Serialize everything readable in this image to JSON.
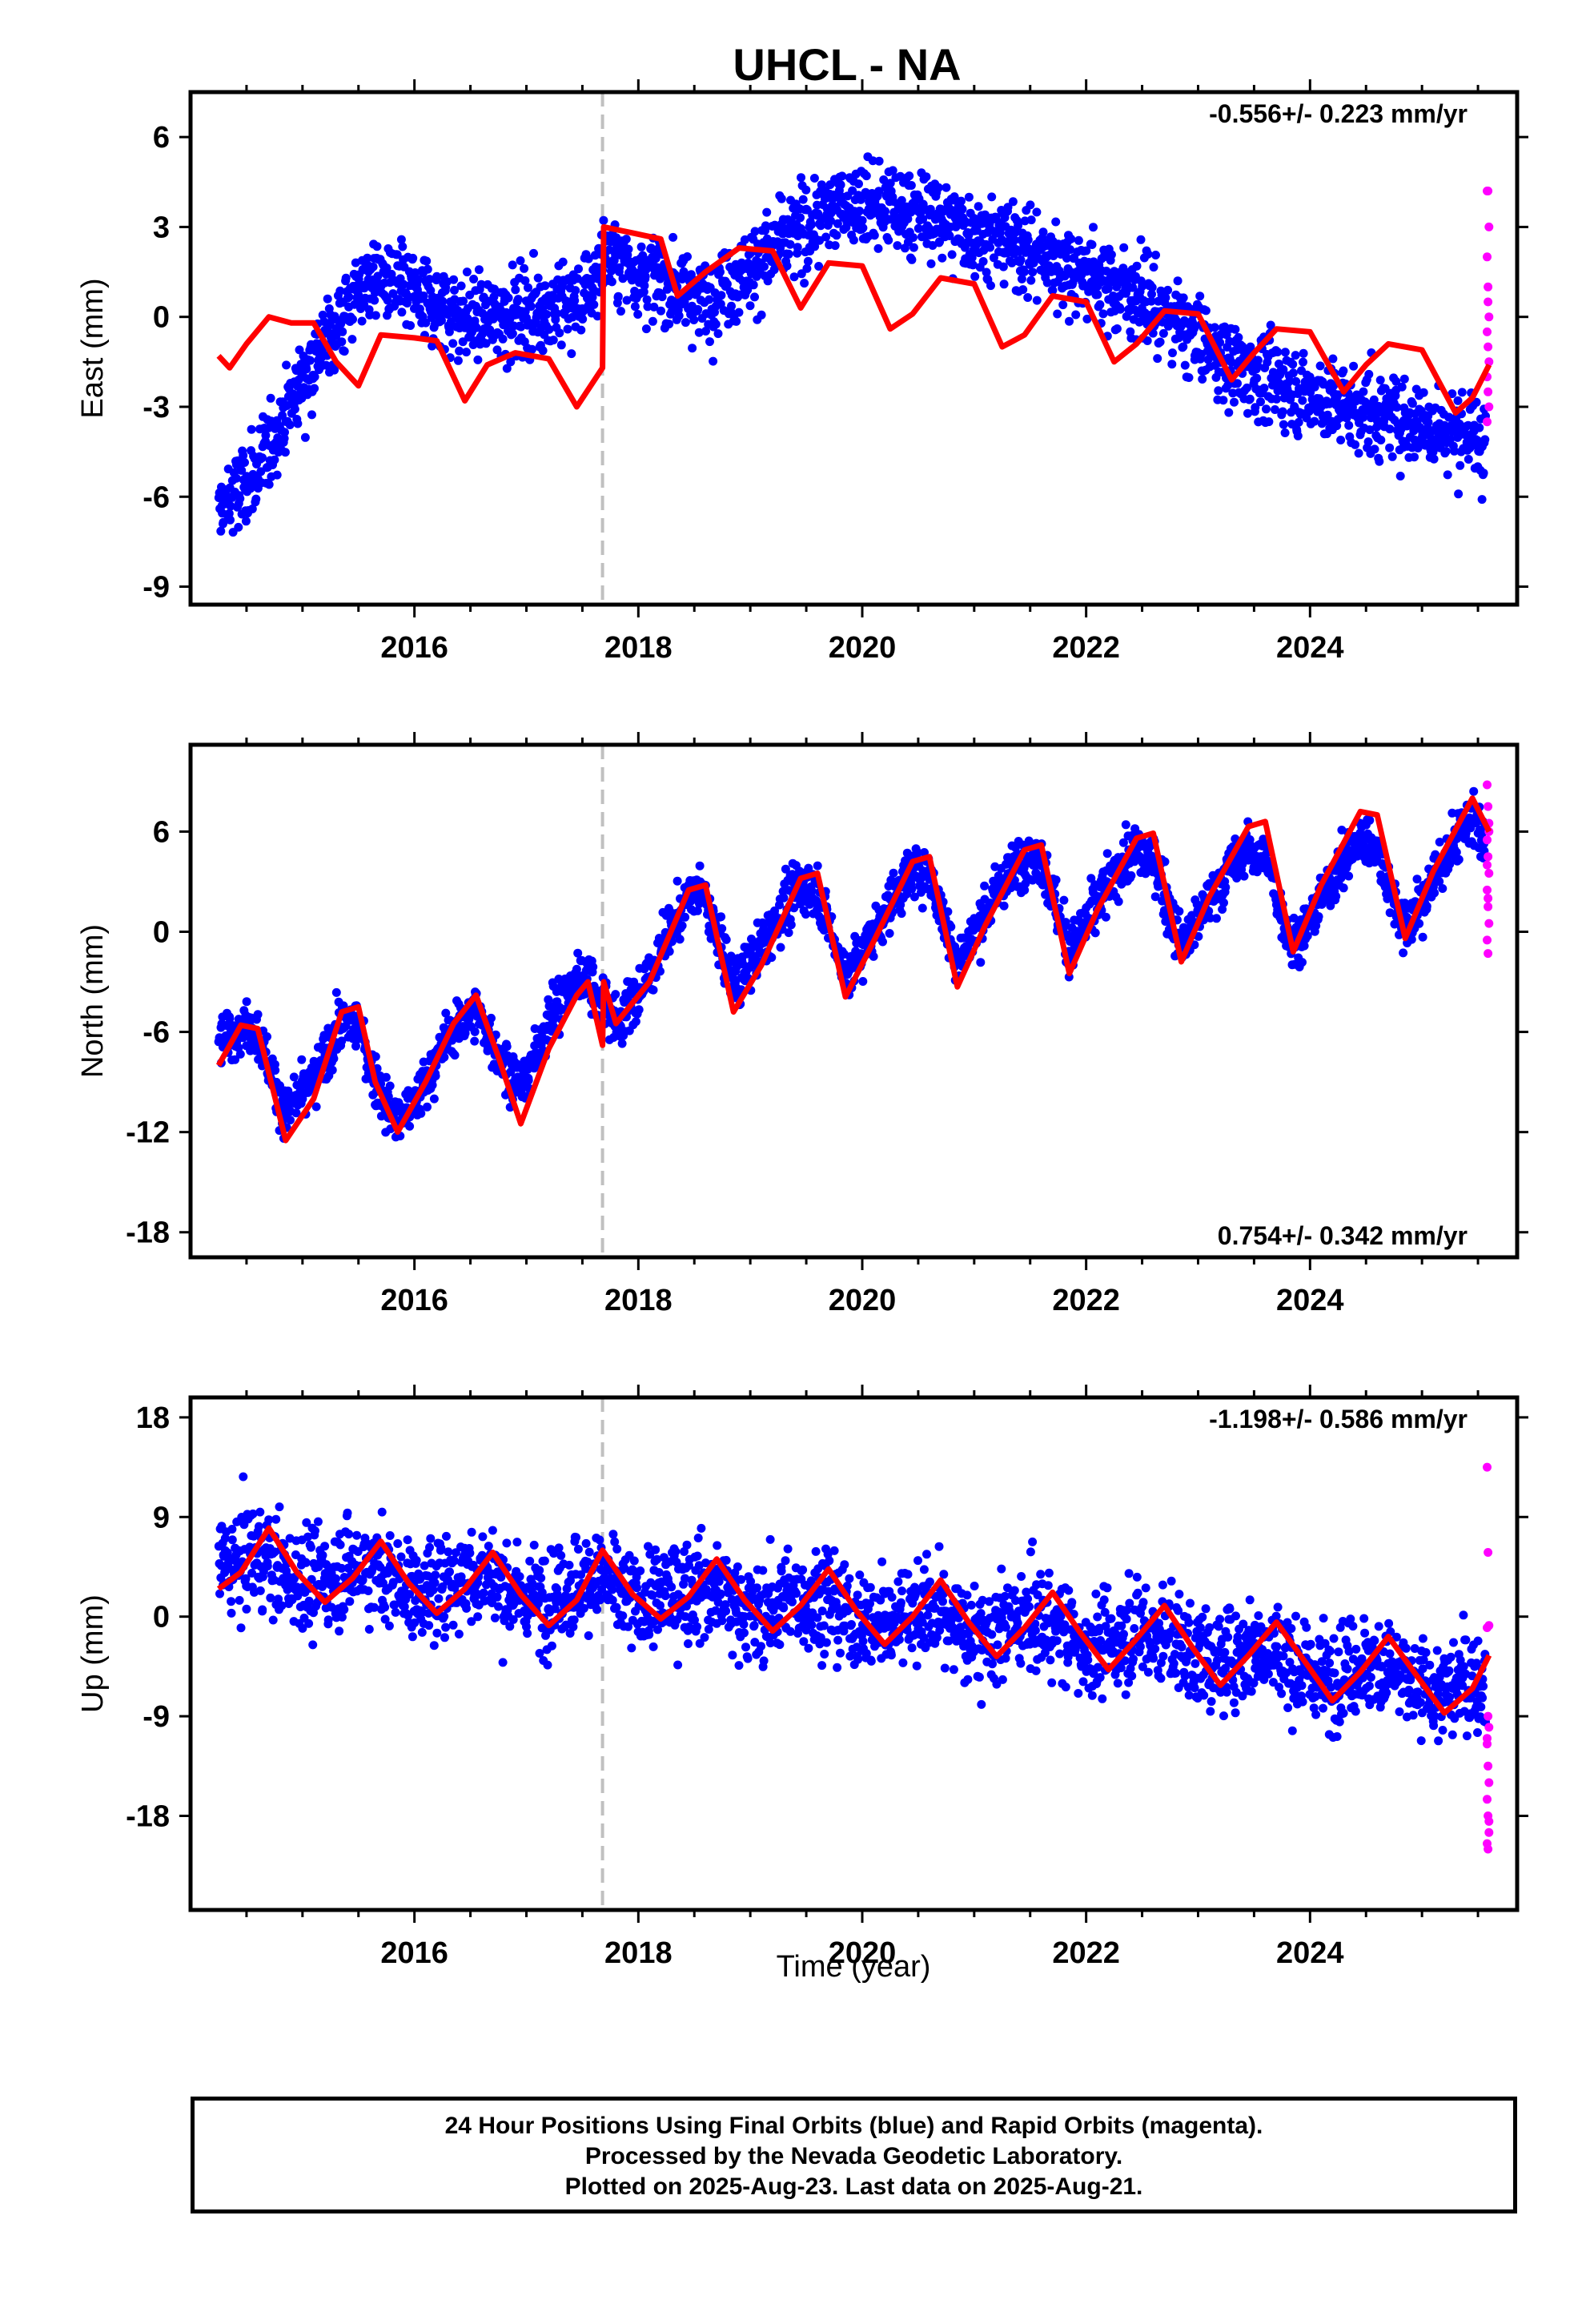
{
  "title": "UHCL - NA",
  "xlabel": "Time (year)",
  "footer": {
    "line1": "24 Hour Positions Using Final Orbits (blue) and Rapid Orbits (magenta).",
    "line2": "Processed by the Nevada Geodetic Laboratory.",
    "line3": "Plotted on 2025-Aug-23. Last data on 2025-Aug-21."
  },
  "colors": {
    "final": "#0000ff",
    "rapid": "#ff00ff",
    "model": "#ff0000",
    "offset": "#c0c0c0"
  },
  "chart_data": [
    {
      "type": "scatter",
      "component": "East",
      "ylabel": "East (mm)",
      "rate": "-0.556+/- 0.223 mm/yr",
      "rate_position": "top-right",
      "xlim": [
        2014.0,
        2025.85
      ],
      "ylim": [
        -9.6,
        7.5
      ],
      "yticks": [
        "6",
        "3",
        "0",
        "-3",
        "-6",
        "-9"
      ],
      "ytick_values": [
        6,
        3,
        0,
        -3,
        -6,
        -9
      ],
      "xticks": [
        "2016",
        "2018",
        "2020",
        "2022",
        "2024"
      ],
      "xtick_values": [
        2016,
        2018,
        2020,
        2022,
        2024
      ],
      "offset_epoch": 2017.68,
      "data_start": 2014.25,
      "data_end": 2025.6,
      "rapid_start": 2025.57,
      "trend_knots": {
        "x": [
          2014.25,
          2014.6,
          2015.0,
          2015.6,
          2016.5,
          2017.5,
          2017.7,
          2018.6,
          2019.8,
          2020.6,
          2021.5,
          2022.5,
          2023.3,
          2024.3,
          2025.5
        ],
        "y": [
          -6.5,
          -5.2,
          -2.0,
          1.4,
          -0.1,
          0.5,
          2.0,
          0.6,
          3.8,
          3.4,
          2.2,
          0.7,
          -1.6,
          -3.0,
          -4.0
        ]
      },
      "noise": 1.2,
      "model": {
        "x": [
          2014.25,
          2014.35,
          2014.5,
          2014.7,
          2014.9,
          2015.1,
          2015.3,
          2015.5,
          2015.7,
          2016.0,
          2016.2,
          2016.45,
          2016.65,
          2016.9,
          2017.2,
          2017.45,
          2017.68,
          2017.69,
          2017.95,
          2018.2,
          2018.35,
          2018.6,
          2018.9,
          2019.2,
          2019.45,
          2019.7,
          2020.0,
          2020.25,
          2020.45,
          2020.7,
          2021.0,
          2021.25,
          2021.45,
          2021.7,
          2022.0,
          2022.25,
          2022.45,
          2022.7,
          2023.0,
          2023.3,
          2023.5,
          2023.7,
          2024.0,
          2024.3,
          2024.5,
          2024.7,
          2025.0,
          2025.3,
          2025.45,
          2025.6
        ],
        "y": [
          -1.3,
          -1.7,
          -0.9,
          0.0,
          -0.2,
          -0.2,
          -1.5,
          -2.3,
          -0.6,
          -0.7,
          -0.8,
          -2.8,
          -1.6,
          -1.2,
          -1.4,
          -3.0,
          -1.7,
          3.0,
          2.8,
          2.6,
          0.7,
          1.5,
          2.3,
          2.2,
          0.3,
          1.8,
          1.7,
          -0.4,
          0.1,
          1.3,
          1.1,
          -1.0,
          -0.6,
          0.7,
          0.5,
          -1.5,
          -0.9,
          0.2,
          0.1,
          -2.1,
          -1.2,
          -0.4,
          -0.5,
          -2.5,
          -1.6,
          -0.9,
          -1.1,
          -3.2,
          -2.7,
          -1.6
        ]
      },
      "rapid_y": [
        4.2,
        4.2,
        3.0,
        2.0,
        1.0,
        0.0,
        -0.5,
        -1.0,
        -1.5,
        -2.0,
        -2.5,
        -3.0,
        -3.5,
        0.5
      ]
    },
    {
      "type": "scatter",
      "component": "North",
      "ylabel": "North (mm)",
      "rate": "0.754+/- 0.342 mm/yr",
      "rate_position": "bottom-right",
      "xlim": [
        2014.0,
        2025.85
      ],
      "ylim": [
        -19.5,
        11.2
      ],
      "yticks": [
        "6",
        "0",
        "-6",
        "-12",
        "-18"
      ],
      "ytick_values": [
        6,
        0,
        -6,
        -12,
        -18
      ],
      "xticks": [
        "2016",
        "2018",
        "2020",
        "2022",
        "2024"
      ],
      "xtick_values": [
        2016,
        2018,
        2020,
        2022,
        2024
      ],
      "offset_epoch": 2017.68,
      "data_start": 2014.25,
      "data_end": 2025.6,
      "rapid_start": 2025.57,
      "trend_knots": {
        "x": [
          2014.25,
          2015.0,
          2016.0,
          2017.0,
          2017.68,
          2017.7,
          2018.5,
          2020.0,
          2021.5,
          2023.0,
          2024.0,
          2025.6
        ],
        "y": [
          -6.0,
          -7.0,
          -9.5,
          -4.5,
          -0.8,
          -5.0,
          1.0,
          0.8,
          3.0,
          1.8,
          0.6,
          3.5
        ]
      },
      "season_amp": 4.6,
      "noise": 1.3,
      "model": {
        "x": [
          2014.25,
          2014.45,
          2014.6,
          2014.85,
          2015.1,
          2015.35,
          2015.5,
          2015.65,
          2015.85,
          2016.1,
          2016.35,
          2016.55,
          2016.75,
          2016.95,
          2017.2,
          2017.45,
          2017.55,
          2017.68,
          2017.69,
          2017.8,
          2018.1,
          2018.45,
          2018.6,
          2018.85,
          2019.1,
          2019.45,
          2019.6,
          2019.85,
          2020.1,
          2020.45,
          2020.6,
          2020.85,
          2021.1,
          2021.45,
          2021.6,
          2021.85,
          2022.1,
          2022.45,
          2022.6,
          2022.85,
          2023.1,
          2023.45,
          2023.6,
          2023.85,
          2024.1,
          2024.45,
          2024.6,
          2024.85,
          2025.1,
          2025.45,
          2025.6
        ],
        "y": [
          -8.0,
          -5.6,
          -5.8,
          -12.5,
          -10.0,
          -4.8,
          -4.5,
          -9.0,
          -12.0,
          -9.0,
          -5.5,
          -3.8,
          -7.5,
          -11.5,
          -7.0,
          -3.8,
          -3.0,
          -6.8,
          -3.0,
          -5.5,
          -3.0,
          2.5,
          2.8,
          -4.8,
          -2.0,
          3.2,
          3.5,
          -3.9,
          -0.6,
          4.2,
          4.5,
          -3.3,
          0.4,
          4.9,
          5.2,
          -2.5,
          1.3,
          5.6,
          5.9,
          -1.8,
          2.1,
          6.3,
          6.6,
          -1.2,
          2.8,
          7.2,
          7.0,
          -0.4,
          3.6,
          8.0,
          6.0
        ]
      },
      "rapid_y": [
        8.8,
        7.5,
        6.5,
        5.5,
        4.5,
        3.5,
        2.5,
        1.5,
        0.5,
        -0.5,
        -1.3,
        6.0,
        4.0,
        2.0
      ]
    },
    {
      "type": "scatter",
      "component": "Up",
      "ylabel": "Up (mm)",
      "rate": "-1.198+/- 0.586 mm/yr",
      "rate_position": "top-right",
      "xlim": [
        2014.0,
        2025.85
      ],
      "ylim": [
        -26.5,
        19.8
      ],
      "yticks": [
        "18",
        "9",
        "0",
        "-9",
        "-18"
      ],
      "ytick_values": [
        18,
        9,
        0,
        -9,
        -18
      ],
      "xticks": [
        "2016",
        "2018",
        "2020",
        "2022",
        "2024"
      ],
      "xtick_values": [
        2016,
        2018,
        2020,
        2022,
        2024
      ],
      "offset_epoch": 2017.68,
      "data_start": 2014.25,
      "data_end": 2025.6,
      "rapid_start": 2025.57,
      "trend_knots": {
        "x": [
          2014.25,
          2015.5,
          2017.0,
          2018.5,
          2020.0,
          2021.5,
          2023.0,
          2024.5,
          2025.6
        ],
        "y": [
          4.5,
          3.5,
          3.0,
          1.8,
          0.0,
          -1.5,
          -3.0,
          -5.5,
          -7.0
        ]
      },
      "season_amp": 3.6,
      "noise": 3.8,
      "model": {
        "x": [
          2014.25,
          2014.45,
          2014.7,
          2014.95,
          2015.2,
          2015.45,
          2015.7,
          2015.95,
          2016.2,
          2016.45,
          2016.7,
          2016.95,
          2017.2,
          2017.45,
          2017.68,
          2017.95,
          2018.2,
          2018.45,
          2018.7,
          2018.95,
          2019.2,
          2019.45,
          2019.7,
          2019.95,
          2020.2,
          2020.45,
          2020.7,
          2020.95,
          2021.2,
          2021.45,
          2021.7,
          2021.95,
          2022.2,
          2022.45,
          2022.7,
          2022.95,
          2023.2,
          2023.45,
          2023.7,
          2023.95,
          2024.2,
          2024.45,
          2024.7,
          2024.95,
          2025.2,
          2025.45,
          2025.6
        ],
        "y": [
          2.5,
          4.0,
          8.0,
          4.0,
          1.3,
          3.5,
          6.8,
          3.0,
          0.3,
          2.5,
          5.8,
          2.0,
          -0.8,
          1.5,
          6.0,
          2.0,
          -0.2,
          1.8,
          5.2,
          1.5,
          -1.3,
          1.0,
          4.3,
          0.5,
          -2.5,
          0.0,
          3.3,
          -0.5,
          -3.6,
          -1.0,
          2.2,
          -1.5,
          -4.8,
          -2.0,
          1.0,
          -2.8,
          -6.2,
          -3.5,
          -0.5,
          -4.0,
          -7.6,
          -5.0,
          -1.8,
          -5.3,
          -8.7,
          -6.5,
          -3.5
        ]
      },
      "rapid_y": [
        13.5,
        5.8,
        -0.8,
        -1.0,
        -9.0,
        -10.0,
        -11.5,
        -13.5,
        -15.0,
        -16.5,
        -18.0,
        -19.5,
        -20.5,
        -21.0,
        -18.5,
        -11.0
      ]
    }
  ]
}
